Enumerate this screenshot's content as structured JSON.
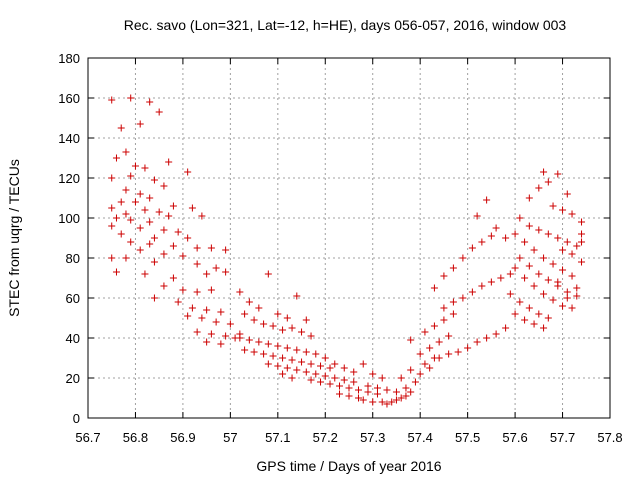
{
  "chart_data": {
    "type": "scatter",
    "title": "Rec. savo (Lon=321, Lat=-12, h=HE), days 056-057, 2016, window 003",
    "xlabel": "GPS time / Days of year 2016",
    "ylabel": "STEC from uqrg / TECUs",
    "xlim": [
      56.7,
      57.8
    ],
    "ylim": [
      0,
      180
    ],
    "x_ticks": [
      56.7,
      56.8,
      56.9,
      57.0,
      57.1,
      57.2,
      57.3,
      57.4,
      57.5,
      57.6,
      57.7,
      57.8
    ],
    "x_tick_labels": [
      "56.7",
      "56.8",
      "56.9",
      "57",
      "57.1",
      "57.2",
      "57.3",
      "57.4",
      "57.5",
      "57.6",
      "57.7",
      "57.8"
    ],
    "y_ticks": [
      0,
      20,
      40,
      60,
      80,
      100,
      120,
      140,
      160,
      180
    ],
    "y_tick_labels": [
      "0",
      "20",
      "40",
      "60",
      "80",
      "100",
      "120",
      "140",
      "160",
      "180"
    ],
    "grid": true,
    "marker": "plus",
    "color": "#cc0000",
    "series": [
      {
        "name": "",
        "points": [
          [
            56.75,
            159
          ],
          [
            56.79,
            160
          ],
          [
            56.83,
            158
          ],
          [
            56.85,
            153
          ],
          [
            56.81,
            147
          ],
          [
            56.77,
            145
          ],
          [
            56.78,
            133
          ],
          [
            56.87,
            128
          ],
          [
            56.76,
            130
          ],
          [
            56.8,
            126
          ],
          [
            56.82,
            125
          ],
          [
            56.91,
            123
          ],
          [
            56.75,
            120
          ],
          [
            56.79,
            121
          ],
          [
            56.84,
            119
          ],
          [
            56.86,
            116
          ],
          [
            56.78,
            114
          ],
          [
            56.81,
            112
          ],
          [
            56.83,
            110
          ],
          [
            56.77,
            108
          ],
          [
            56.8,
            108
          ],
          [
            56.88,
            106
          ],
          [
            56.75,
            105
          ],
          [
            56.82,
            104
          ],
          [
            56.85,
            103
          ],
          [
            56.92,
            105
          ],
          [
            56.78,
            102
          ],
          [
            56.87,
            101
          ],
          [
            56.94,
            101
          ],
          [
            56.76,
            100
          ],
          [
            56.79,
            99
          ],
          [
            56.83,
            98
          ],
          [
            56.75,
            96
          ],
          [
            56.81,
            95
          ],
          [
            56.86,
            94
          ],
          [
            56.89,
            93
          ],
          [
            56.77,
            92
          ],
          [
            56.84,
            90
          ],
          [
            56.91,
            90
          ],
          [
            56.79,
            88
          ],
          [
            56.83,
            87
          ],
          [
            56.88,
            86
          ],
          [
            56.93,
            85
          ],
          [
            56.96,
            85
          ],
          [
            56.99,
            84
          ],
          [
            56.75,
            80
          ],
          [
            56.81,
            84
          ],
          [
            56.86,
            82
          ],
          [
            56.9,
            81
          ],
          [
            56.78,
            80
          ],
          [
            56.84,
            78
          ],
          [
            56.93,
            77
          ],
          [
            56.97,
            75
          ],
          [
            56.76,
            73
          ],
          [
            56.82,
            72
          ],
          [
            56.88,
            70
          ],
          [
            56.95,
            72
          ],
          [
            56.99,
            73
          ],
          [
            56.86,
            66
          ],
          [
            56.9,
            64
          ],
          [
            56.93,
            63
          ],
          [
            56.96,
            64
          ],
          [
            56.84,
            60
          ],
          [
            56.89,
            58
          ],
          [
            56.92,
            55
          ],
          [
            56.95,
            54
          ],
          [
            56.98,
            53
          ],
          [
            56.91,
            51
          ],
          [
            56.94,
            50
          ],
          [
            56.97,
            48
          ],
          [
            57.0,
            47
          ],
          [
            56.93,
            43
          ],
          [
            56.96,
            42
          ],
          [
            56.99,
            41
          ],
          [
            57.02,
            42
          ],
          [
            56.95,
            38
          ],
          [
            56.98,
            37
          ],
          [
            57.01,
            40
          ],
          [
            57.02,
            63
          ],
          [
            57.04,
            58
          ],
          [
            57.06,
            55
          ],
          [
            57.08,
            72
          ],
          [
            57.1,
            52
          ],
          [
            57.12,
            50
          ],
          [
            57.14,
            61
          ],
          [
            57.16,
            49
          ],
          [
            57.03,
            52
          ],
          [
            57.05,
            49
          ],
          [
            57.07,
            47
          ],
          [
            57.09,
            46
          ],
          [
            57.11,
            44
          ],
          [
            57.13,
            45
          ],
          [
            57.15,
            43
          ],
          [
            57.17,
            41
          ],
          [
            57.02,
            40
          ],
          [
            57.04,
            39
          ],
          [
            57.06,
            38
          ],
          [
            57.08,
            37
          ],
          [
            57.1,
            36
          ],
          [
            57.12,
            35
          ],
          [
            57.14,
            34
          ],
          [
            57.16,
            33
          ],
          [
            57.18,
            32
          ],
          [
            57.2,
            30
          ],
          [
            57.03,
            34
          ],
          [
            57.05,
            33
          ],
          [
            57.07,
            32
          ],
          [
            57.09,
            31
          ],
          [
            57.11,
            30
          ],
          [
            57.13,
            29
          ],
          [
            57.15,
            28
          ],
          [
            57.17,
            27
          ],
          [
            57.19,
            26
          ],
          [
            57.21,
            25
          ],
          [
            57.08,
            27
          ],
          [
            57.1,
            26
          ],
          [
            57.12,
            25
          ],
          [
            57.14,
            24
          ],
          [
            57.16,
            23
          ],
          [
            57.18,
            22
          ],
          [
            57.2,
            21
          ],
          [
            57.22,
            20
          ],
          [
            57.24,
            19
          ],
          [
            57.26,
            18
          ],
          [
            57.11,
            22
          ],
          [
            57.13,
            20
          ],
          [
            57.17,
            19
          ],
          [
            57.19,
            18
          ],
          [
            57.21,
            17
          ],
          [
            57.23,
            16
          ],
          [
            57.25,
            15
          ],
          [
            57.27,
            14
          ],
          [
            57.29,
            13
          ],
          [
            57.31,
            12
          ],
          [
            57.22,
            27
          ],
          [
            57.24,
            25
          ],
          [
            57.26,
            23
          ],
          [
            57.28,
            27
          ],
          [
            57.3,
            22
          ],
          [
            57.32,
            20
          ],
          [
            57.23,
            12
          ],
          [
            57.25,
            11
          ],
          [
            57.27,
            10
          ],
          [
            57.28,
            9
          ],
          [
            57.3,
            8
          ],
          [
            57.32,
            8
          ],
          [
            57.33,
            7
          ],
          [
            57.34,
            8
          ],
          [
            57.35,
            9
          ],
          [
            57.36,
            10
          ],
          [
            57.37,
            11
          ],
          [
            57.38,
            13
          ],
          [
            57.29,
            16
          ],
          [
            57.31,
            15
          ],
          [
            57.33,
            14
          ],
          [
            57.35,
            13
          ],
          [
            57.37,
            15
          ],
          [
            57.39,
            18
          ],
          [
            57.36,
            20
          ],
          [
            57.38,
            24
          ],
          [
            57.4,
            22
          ],
          [
            57.42,
            25
          ],
          [
            57.41,
            27
          ],
          [
            57.43,
            30
          ],
          [
            57.4,
            32
          ],
          [
            57.42,
            35
          ],
          [
            57.44,
            38
          ],
          [
            57.46,
            41
          ],
          [
            57.41,
            43
          ],
          [
            57.43,
            46
          ],
          [
            57.45,
            49
          ],
          [
            57.47,
            52
          ],
          [
            57.38,
            39
          ],
          [
            57.44,
            30
          ],
          [
            57.46,
            32
          ],
          [
            57.48,
            33
          ],
          [
            57.5,
            35
          ],
          [
            57.52,
            38
          ],
          [
            57.54,
            40
          ],
          [
            57.56,
            42
          ],
          [
            57.58,
            45
          ],
          [
            57.45,
            55
          ],
          [
            57.47,
            58
          ],
          [
            57.49,
            60
          ],
          [
            57.51,
            63
          ],
          [
            57.53,
            66
          ],
          [
            57.55,
            68
          ],
          [
            57.57,
            70
          ],
          [
            57.59,
            72
          ],
          [
            57.43,
            65
          ],
          [
            57.45,
            71
          ],
          [
            57.47,
            75
          ],
          [
            57.49,
            80
          ],
          [
            57.51,
            85
          ],
          [
            57.53,
            88
          ],
          [
            57.55,
            91
          ],
          [
            57.54,
            109
          ],
          [
            57.52,
            101
          ],
          [
            57.56,
            95
          ],
          [
            57.58,
            90
          ],
          [
            57.6,
            92
          ],
          [
            57.62,
            88
          ],
          [
            57.64,
            84
          ],
          [
            57.66,
            80
          ],
          [
            57.68,
            77
          ],
          [
            57.7,
            74
          ],
          [
            57.72,
            71
          ],
          [
            57.61,
            80
          ],
          [
            57.63,
            76
          ],
          [
            57.65,
            72
          ],
          [
            57.67,
            69
          ],
          [
            57.69,
            66
          ],
          [
            57.71,
            63
          ],
          [
            57.73,
            61
          ],
          [
            57.6,
            75
          ],
          [
            57.62,
            70
          ],
          [
            57.64,
            66
          ],
          [
            57.66,
            62
          ],
          [
            57.68,
            59
          ],
          [
            57.7,
            56
          ],
          [
            57.72,
            55
          ],
          [
            57.59,
            62
          ],
          [
            57.61,
            58
          ],
          [
            57.63,
            55
          ],
          [
            57.65,
            52
          ],
          [
            57.67,
            50
          ],
          [
            57.6,
            52
          ],
          [
            57.62,
            49
          ],
          [
            57.64,
            47
          ],
          [
            57.66,
            45
          ],
          [
            57.63,
            110
          ],
          [
            57.65,
            115
          ],
          [
            57.67,
            118
          ],
          [
            57.69,
            122
          ],
          [
            57.71,
            112
          ],
          [
            57.66,
            123
          ],
          [
            57.68,
            106
          ],
          [
            57.7,
            104
          ],
          [
            57.72,
            102
          ],
          [
            57.74,
            98
          ],
          [
            57.61,
            100
          ],
          [
            57.63,
            96
          ],
          [
            57.65,
            94
          ],
          [
            57.67,
            92
          ],
          [
            57.69,
            90
          ],
          [
            57.71,
            88
          ],
          [
            57.73,
            86
          ],
          [
            57.74,
            92
          ],
          [
            57.74,
            78
          ],
          [
            57.72,
            82
          ],
          [
            57.7,
            84
          ],
          [
            57.73,
            65
          ],
          [
            57.71,
            60
          ],
          [
            57.69,
            68
          ],
          [
            57.74,
            88
          ]
        ]
      }
    ]
  }
}
